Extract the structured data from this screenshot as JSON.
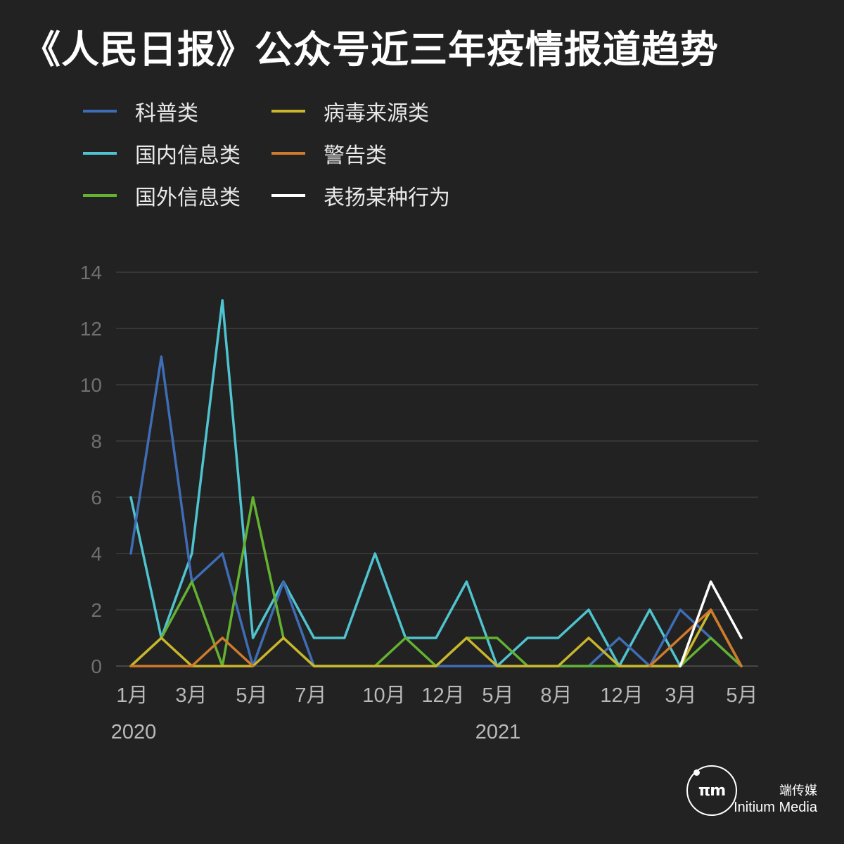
{
  "title": "《人民日报》公众号近三年疫情报道趋势",
  "legend": [
    {
      "name": "科普类",
      "color": "#3f6db5"
    },
    {
      "name": "病毒来源类",
      "color": "#c9b62c"
    },
    {
      "name": "国内信息类",
      "color": "#4fc3cf"
    },
    {
      "name": "警告类",
      "color": "#d07a2c"
    },
    {
      "name": "国外信息类",
      "color": "#63b232"
    },
    {
      "name": "表扬某种行为",
      "color": "#ffffff"
    }
  ],
  "chart_data": {
    "type": "line",
    "x_tick_labels": [
      "1月",
      "3月",
      "5月",
      "7月",
      "10月",
      "12月",
      "5月",
      "8月",
      "12月",
      "3月",
      "5月"
    ],
    "year_labels": [
      "2020",
      "2021"
    ],
    "ylim": [
      0,
      14
    ],
    "y_ticks": [
      "0",
      "2",
      "4",
      "6",
      "8",
      "10",
      "12",
      "14"
    ],
    "grid": true,
    "legend_position": "top-left",
    "series": [
      {
        "name": "国内信息类",
        "color": "#4fc3cf",
        "values": [
          6,
          1,
          4,
          13,
          1,
          3,
          1,
          1,
          4,
          1,
          1,
          3,
          0,
          1,
          1,
          2,
          0,
          2,
          0,
          null,
          null
        ]
      },
      {
        "name": "科普类",
        "color": "#3f6db5",
        "values": [
          4,
          11,
          3,
          4,
          0,
          3,
          0,
          0,
          0,
          0,
          0,
          0,
          0,
          0,
          0,
          0,
          1,
          0,
          2,
          1,
          0
        ]
      },
      {
        "name": "国外信息类",
        "color": "#63b232",
        "values": [
          0,
          1,
          3,
          0,
          6,
          1,
          0,
          0,
          0,
          1,
          0,
          1,
          1,
          0,
          0,
          0,
          0,
          0,
          0,
          1,
          0
        ]
      },
      {
        "name": "病毒来源类",
        "color": "#c9b62c",
        "values": [
          0,
          1,
          0,
          0,
          0,
          1,
          0,
          0,
          0,
          0,
          0,
          1,
          0,
          0,
          0,
          1,
          0,
          0,
          0,
          2,
          0
        ]
      },
      {
        "name": "警告类",
        "color": "#d07a2c",
        "values": [
          0,
          0,
          0,
          1,
          0,
          null,
          null,
          null,
          null,
          null,
          null,
          null,
          null,
          null,
          null,
          null,
          null,
          0,
          1,
          2,
          0
        ]
      },
      {
        "name": "表扬某种行为",
        "color": "#ffffff",
        "values": [
          null,
          null,
          null,
          null,
          null,
          null,
          null,
          null,
          null,
          null,
          null,
          null,
          null,
          null,
          null,
          null,
          null,
          null,
          0,
          3,
          1
        ]
      }
    ]
  },
  "brand": {
    "cn": "端传媒",
    "en": "Initium Media",
    "logo_text": "πm"
  }
}
